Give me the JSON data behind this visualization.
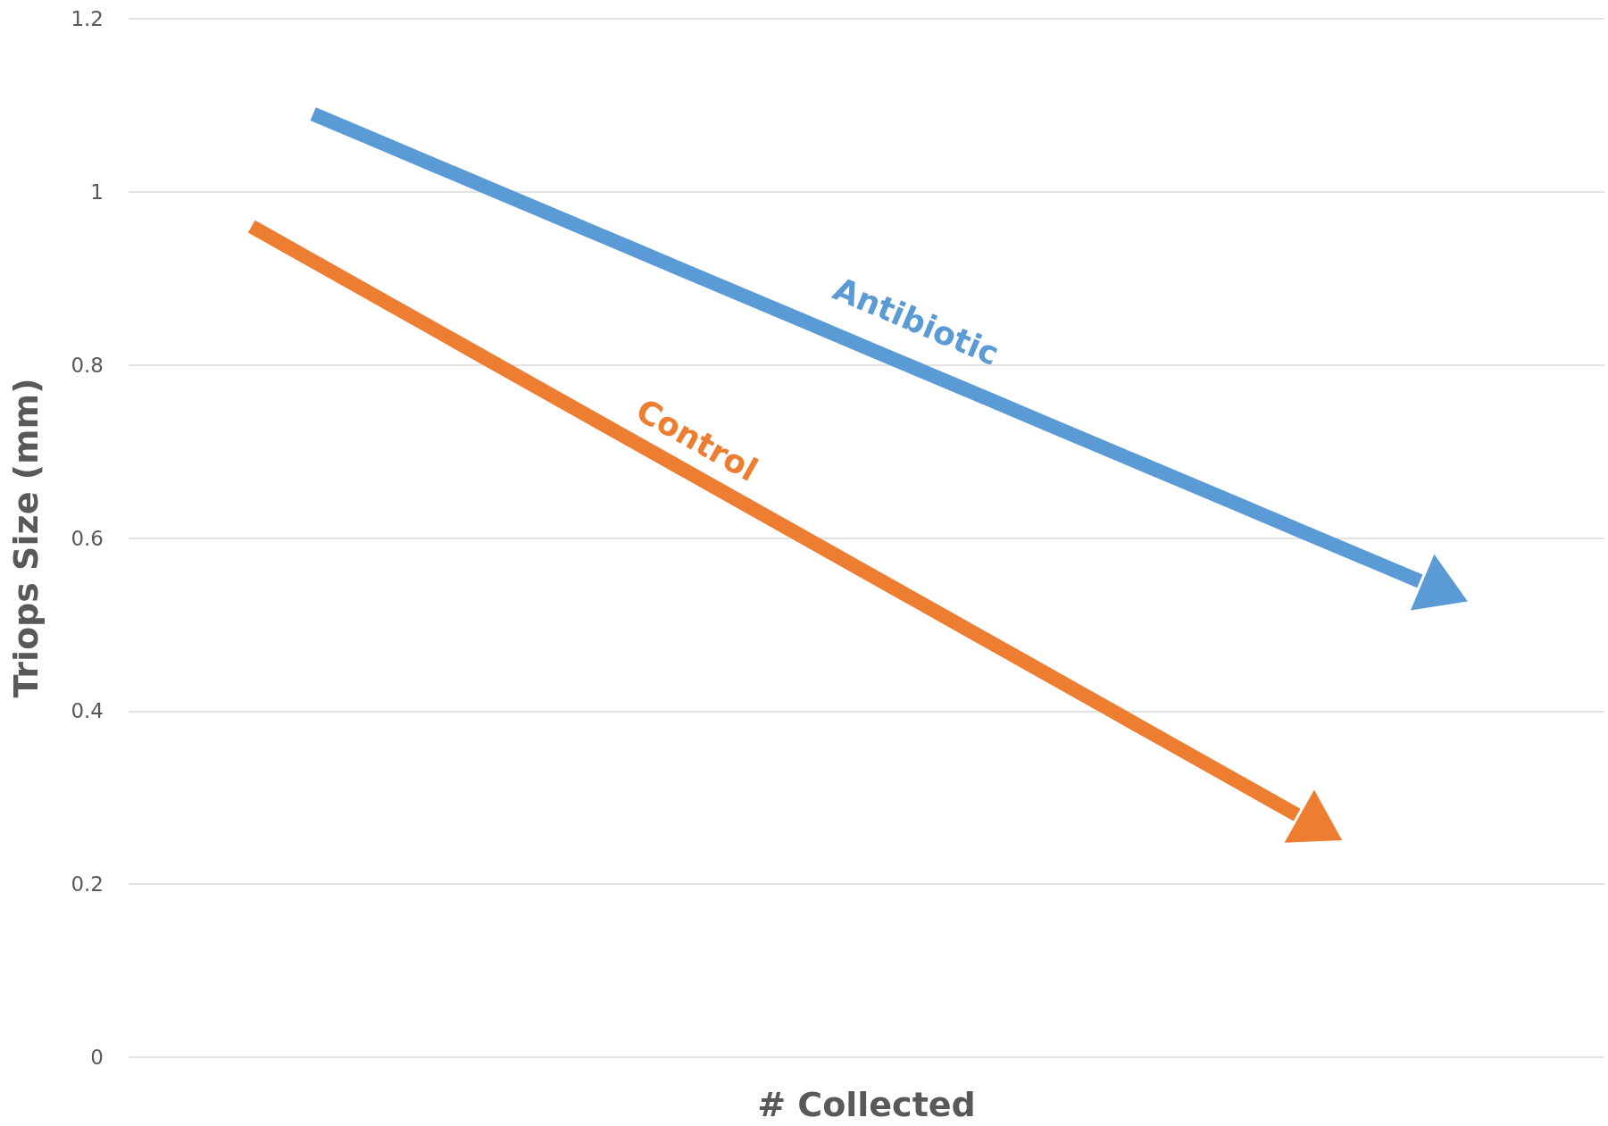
{
  "chart_data": {
    "type": "line",
    "xlabel": "# Collected",
    "ylabel": "Triops Size (mm)",
    "categories": [
      null,
      null,
      null,
      null,
      null,
      null,
      null,
      null,
      null,
      null,
      null,
      null,
      null,
      null,
      null,
      null,
      null,
      null,
      null,
      null,
      null,
      null,
      null,
      null,
      null
    ],
    "series": [
      {
        "name": "Antibiotic",
        "color": "#5b9bd5",
        "values": [
          null,
          null,
          null,
          1.09,
          1.06,
          1.03,
          1.0,
          0.97,
          0.94,
          0.91,
          0.88,
          0.85,
          0.82,
          0.79,
          0.76,
          0.73,
          0.7,
          0.67,
          0.64,
          0.61,
          0.58,
          0.55,
          null,
          null,
          null
        ]
      },
      {
        "name": "Control",
        "color": "#ed7d31",
        "values": [
          null,
          null,
          0.96,
          0.92,
          0.88,
          0.84,
          0.8,
          0.76,
          0.72,
          0.68,
          0.64,
          0.6,
          0.56,
          0.52,
          0.48,
          0.44,
          0.4,
          0.36,
          0.32,
          0.28,
          null,
          null,
          null,
          null,
          null
        ]
      }
    ],
    "ylim": [
      0,
      1.2
    ],
    "yticks": [
      0,
      0.2,
      0.4,
      0.6,
      0.8,
      1,
      1.2
    ],
    "grid": "y",
    "tick_labels": "y",
    "legend": false
  }
}
